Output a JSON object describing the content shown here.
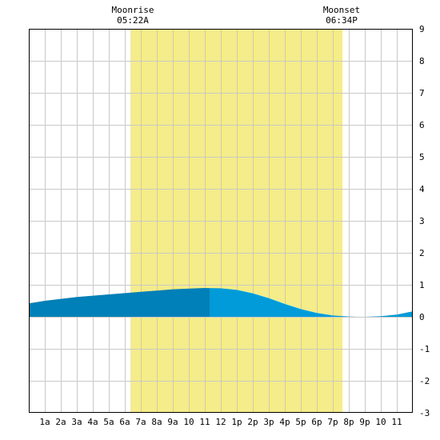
{
  "chart_data": {
    "type": "area",
    "x_unit_hours": [
      0,
      24
    ],
    "ylim": [
      -3,
      9
    ],
    "y_ticks": [
      -3,
      -2,
      -1,
      0,
      1,
      2,
      3,
      4,
      5,
      6,
      7,
      8,
      9
    ],
    "x_tick_labels": [
      {
        "hour": 1,
        "label": "1a"
      },
      {
        "hour": 2,
        "label": "2a"
      },
      {
        "hour": 3,
        "label": "3a"
      },
      {
        "hour": 4,
        "label": "4a"
      },
      {
        "hour": 5,
        "label": "5a"
      },
      {
        "hour": 6,
        "label": "6a"
      },
      {
        "hour": 7,
        "label": "7a"
      },
      {
        "hour": 8,
        "label": "8a"
      },
      {
        "hour": 9,
        "label": "9a"
      },
      {
        "hour": 10,
        "label": "10"
      },
      {
        "hour": 11,
        "label": "11"
      },
      {
        "hour": 12,
        "label": "12"
      },
      {
        "hour": 13,
        "label": "1p"
      },
      {
        "hour": 14,
        "label": "2p"
      },
      {
        "hour": 15,
        "label": "3p"
      },
      {
        "hour": 16,
        "label": "4p"
      },
      {
        "hour": 17,
        "label": "5p"
      },
      {
        "hour": 18,
        "label": "6p"
      },
      {
        "hour": 19,
        "label": "7p"
      },
      {
        "hour": 20,
        "label": "8p"
      },
      {
        "hour": 21,
        "label": "9p"
      },
      {
        "hour": 22,
        "label": "10"
      },
      {
        "hour": 23,
        "label": "11"
      }
    ],
    "moonrise": {
      "title": "Moonrise",
      "time": "05:22A",
      "hour": 6.35
    },
    "moonset": {
      "title": "Moonset",
      "time": "06:34P",
      "hour": 19.6
    },
    "highlight_split_hour": 11.3,
    "series": [
      {
        "x": [
          0,
          1,
          2,
          3,
          4,
          5,
          6,
          7,
          8,
          9,
          10,
          11,
          12,
          13,
          14,
          15,
          16,
          17,
          18,
          19,
          20,
          20.5,
          21,
          22,
          23,
          24
        ],
        "y": [
          0.42,
          0.5,
          0.56,
          0.62,
          0.66,
          0.7,
          0.74,
          0.78,
          0.82,
          0.86,
          0.88,
          0.9,
          0.89,
          0.84,
          0.73,
          0.58,
          0.4,
          0.24,
          0.12,
          0.04,
          0.01,
          0.0,
          0.0,
          0.02,
          0.07,
          0.17
        ]
      }
    ],
    "colors": {
      "daylight": "#f5ec8a",
      "grid": "#c8c8c8",
      "fill_dark": "#0080b8",
      "fill_light": "#009bd8",
      "frame": "#000000"
    }
  }
}
